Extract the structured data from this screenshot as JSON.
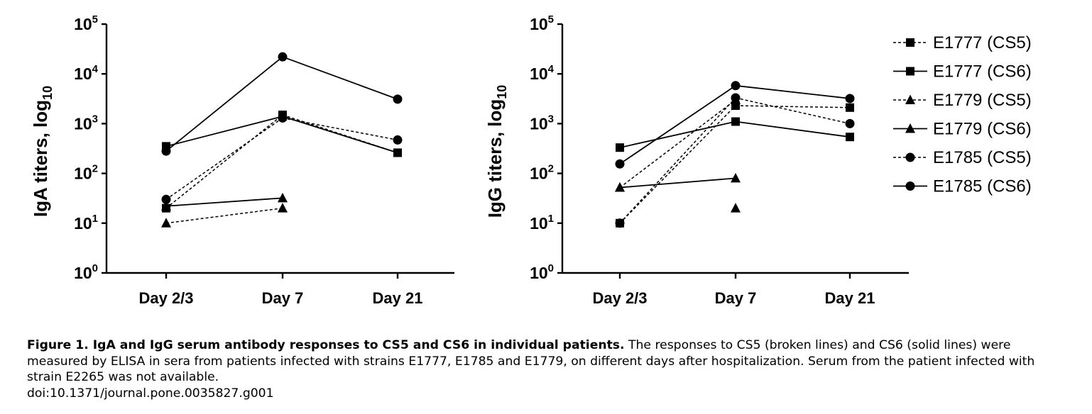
{
  "chart_data": [
    {
      "type": "line",
      "title": "",
      "xlabel": "",
      "ylabel": "IgA titers, log",
      "ylabel_sub": "10",
      "yscale": "log",
      "ylim": [
        1,
        100000
      ],
      "y_ticks": [
        {
          "base": "10",
          "exp": "0"
        },
        {
          "base": "10",
          "exp": "1"
        },
        {
          "base": "10",
          "exp": "2"
        },
        {
          "base": "10",
          "exp": "3"
        },
        {
          "base": "10",
          "exp": "4"
        },
        {
          "base": "10",
          "exp": "5"
        }
      ],
      "categories": [
        "Day 2/3",
        "Day 7",
        "Day 21"
      ],
      "grid": false,
      "series": [
        {
          "name": "E1777 (CS5)",
          "marker": "square",
          "dashed": true,
          "values": [
            20,
            1500,
            260
          ]
        },
        {
          "name": "E1777 (CS6)",
          "marker": "square",
          "dashed": false,
          "values": [
            350,
            1400,
            260
          ]
        },
        {
          "name": "E1779 (CS5)",
          "marker": "triangle",
          "dashed": true,
          "values": [
            10,
            20,
            null
          ]
        },
        {
          "name": "E1779 (CS6)",
          "marker": "triangle",
          "dashed": false,
          "values": [
            22,
            32,
            null
          ]
        },
        {
          "name": "E1785 (CS5)",
          "marker": "circle",
          "dashed": true,
          "values": [
            30,
            1300,
            470
          ]
        },
        {
          "name": "E1785 (CS6)",
          "marker": "circle",
          "dashed": false,
          "values": [
            280,
            22000,
            3100
          ]
        }
      ]
    },
    {
      "type": "line",
      "title": "",
      "xlabel": "",
      "ylabel": "IgG titers, log",
      "ylabel_sub": "10",
      "yscale": "log",
      "ylim": [
        1,
        100000
      ],
      "y_ticks": [
        {
          "base": "10",
          "exp": "0"
        },
        {
          "base": "10",
          "exp": "1"
        },
        {
          "base": "10",
          "exp": "2"
        },
        {
          "base": "10",
          "exp": "3"
        },
        {
          "base": "10",
          "exp": "4"
        },
        {
          "base": "10",
          "exp": "5"
        }
      ],
      "categories": [
        "Day 2/3",
        "Day 7",
        "Day 21"
      ],
      "grid": false,
      "legend": "right",
      "series": [
        {
          "name": "E1777 (CS5)",
          "marker": "square",
          "dashed": true,
          "values": [
            10,
            2300,
            2100
          ]
        },
        {
          "name": "E1777 (CS6)",
          "marker": "square",
          "dashed": false,
          "values": [
            330,
            1100,
            540
          ]
        },
        {
          "name": "E1779 (CS5)",
          "marker": "triangle",
          "dashed": true,
          "values": [
            52,
            3000,
            null
          ]
        },
        {
          "name": "E1779 (CS6)",
          "marker": "triangle",
          "dashed": false,
          "values": [
            52,
            80,
            null
          ]
        },
        {
          "name": "E1785 (CS5)",
          "marker": "circle",
          "dashed": true,
          "values": [
            10,
            3300,
            1000
          ]
        },
        {
          "name": "E1785 (CS6)",
          "marker": "circle",
          "dashed": false,
          "values": [
            155,
            5800,
            3200
          ]
        }
      ],
      "extra_marks": [
        {
          "marker": "triangle",
          "dashed": true,
          "category": "Day 7",
          "value": 20
        }
      ]
    }
  ],
  "caption": {
    "title": "Figure 1. IgA and IgG serum antibody responses to CS5 and CS6 in individual patients.",
    "body": " The responses to CS5 (broken lines) and CS6 (solid lines) were measured by ELISA in sera from patients infected with strains E1777, E1785 and E1779, on different days after hospitalization. Serum from the patient infected with strain E2265 was not available.",
    "doi": "doi:10.1371/journal.pone.0035827.g001"
  }
}
